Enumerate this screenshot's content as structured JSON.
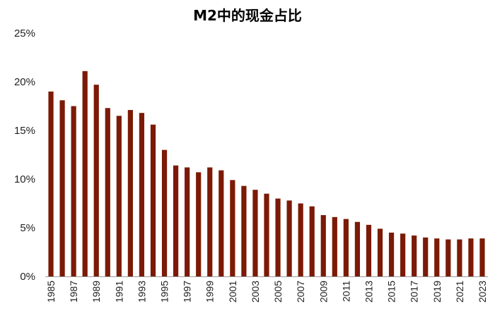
{
  "chart_data": {
    "type": "bar",
    "title": "M2中的现金占比",
    "xlabel": "",
    "ylabel": "",
    "ylim": [
      0,
      25
    ],
    "yticks": [
      "0%",
      "5%",
      "10%",
      "15%",
      "20%",
      "25%"
    ],
    "categories": [
      "1985",
      "1986",
      "1987",
      "1988",
      "1989",
      "1990",
      "1991",
      "1992",
      "1993",
      "1994",
      "1995",
      "1996",
      "1997",
      "1998",
      "1999",
      "2000",
      "2001",
      "2002",
      "2003",
      "2004",
      "2005",
      "2006",
      "2007",
      "2008",
      "2009",
      "2010",
      "2011",
      "2012",
      "2013",
      "2014",
      "2015",
      "2016",
      "2017",
      "2018",
      "2019",
      "2020",
      "2021",
      "2022",
      "2023"
    ],
    "xtick_labels": [
      "1985",
      "1987",
      "1989",
      "1991",
      "1993",
      "1995",
      "1997",
      "1999",
      "2001",
      "2003",
      "2005",
      "2007",
      "2009",
      "2011",
      "2013",
      "2015",
      "2017",
      "2019",
      "2021",
      "2023"
    ],
    "values": [
      19.0,
      18.1,
      17.5,
      21.1,
      19.7,
      17.3,
      16.5,
      17.1,
      16.8,
      15.6,
      13.0,
      11.4,
      11.2,
      10.7,
      11.2,
      10.9,
      9.9,
      9.3,
      8.9,
      8.5,
      8.0,
      7.8,
      7.5,
      7.2,
      6.3,
      6.1,
      5.9,
      5.6,
      5.3,
      4.9,
      4.5,
      4.4,
      4.2,
      4.0,
      3.9,
      3.8,
      3.8,
      3.9,
      3.9
    ],
    "bar_color": "#7B1A06",
    "grid": false,
    "legend": "none"
  }
}
